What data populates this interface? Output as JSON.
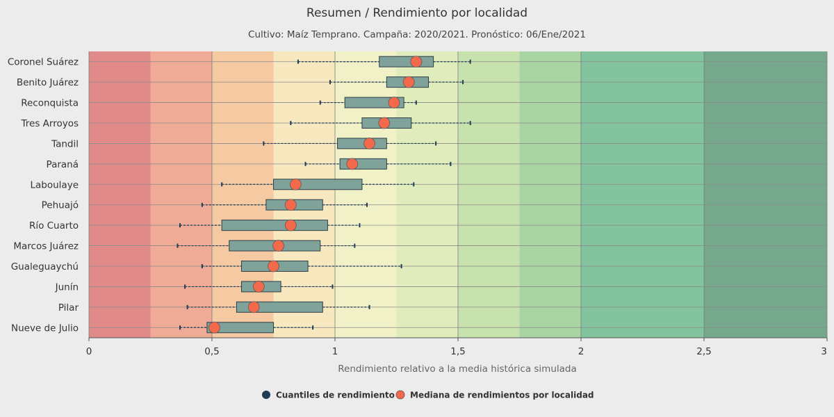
{
  "chart_data": {
    "type": "boxplot",
    "orientation": "horizontal",
    "title": "Resumen / Rendimiento por localidad",
    "subtitle": "Cultivo: Maíz Temprano. Campaña: 2020/2021. Pronóstico: 06/Ene/2021",
    "xlabel": "Rendimiento relativo a la media histórica simulada",
    "xlim": [
      0,
      3
    ],
    "x_ticks": [
      0,
      0.5,
      1,
      1.5,
      2,
      2.5,
      3
    ],
    "x_tick_labels": [
      "0",
      "0,5",
      "1",
      "1,5",
      "2",
      "2,5",
      "3"
    ],
    "bands": [
      {
        "from": 0,
        "to": 0.25,
        "color": "#e08b89"
      },
      {
        "from": 0.25,
        "to": 0.5,
        "color": "#f0ab97"
      },
      {
        "from": 0.5,
        "to": 0.75,
        "color": "#f5c9a2"
      },
      {
        "from": 0.75,
        "to": 1.0,
        "color": "#f8e8c0"
      },
      {
        "from": 1.0,
        "to": 1.25,
        "color": "#f1f1c8"
      },
      {
        "from": 1.25,
        "to": 1.5,
        "color": "#e1ecbc"
      },
      {
        "from": 1.5,
        "to": 1.75,
        "color": "#c8e2ae"
      },
      {
        "from": 1.75,
        "to": 2.0,
        "color": "#a8d5a3"
      },
      {
        "from": 2.0,
        "to": 2.5,
        "color": "#83c39e"
      },
      {
        "from": 2.5,
        "to": 3.0,
        "color": "#76a88d"
      }
    ],
    "box_color": "#7fa29a",
    "whisker_color": "#1f3b55",
    "median_color": "#f26a4b",
    "categories": [
      "Coronel Suárez",
      "Benito Juárez",
      "Reconquista",
      "Tres Arroyos",
      "Tandil",
      "Paraná",
      "Laboulaye",
      "Pehuajó",
      "Río Cuarto",
      "Marcos Juárez",
      "Gualeguaychú",
      "Junín",
      "Pilar",
      "Nueve de Julio"
    ],
    "series": [
      {
        "name": "Cuantiles de rendimiento",
        "type": "boxplot",
        "low": [
          0.85,
          0.98,
          0.94,
          0.82,
          0.71,
          0.88,
          0.54,
          0.46,
          0.37,
          0.36,
          0.46,
          0.39,
          0.4,
          0.37
        ],
        "q1": [
          1.18,
          1.21,
          1.04,
          1.11,
          1.01,
          1.02,
          0.75,
          0.72,
          0.54,
          0.57,
          0.62,
          0.62,
          0.6,
          0.48
        ],
        "q3": [
          1.4,
          1.38,
          1.28,
          1.31,
          1.21,
          1.21,
          1.11,
          0.95,
          0.97,
          0.94,
          0.89,
          0.78,
          0.95,
          0.75
        ],
        "high": [
          1.55,
          1.52,
          1.33,
          1.55,
          1.41,
          1.47,
          1.32,
          1.13,
          1.1,
          1.08,
          1.27,
          0.99,
          1.14,
          0.91
        ]
      },
      {
        "name": "Mediana de rendimientos por localidad",
        "type": "scatter",
        "values": [
          1.33,
          1.3,
          1.24,
          1.2,
          1.14,
          1.07,
          0.84,
          0.82,
          0.82,
          0.77,
          0.75,
          0.69,
          0.67,
          0.51
        ]
      }
    ],
    "legend_position": "bottom-center"
  }
}
